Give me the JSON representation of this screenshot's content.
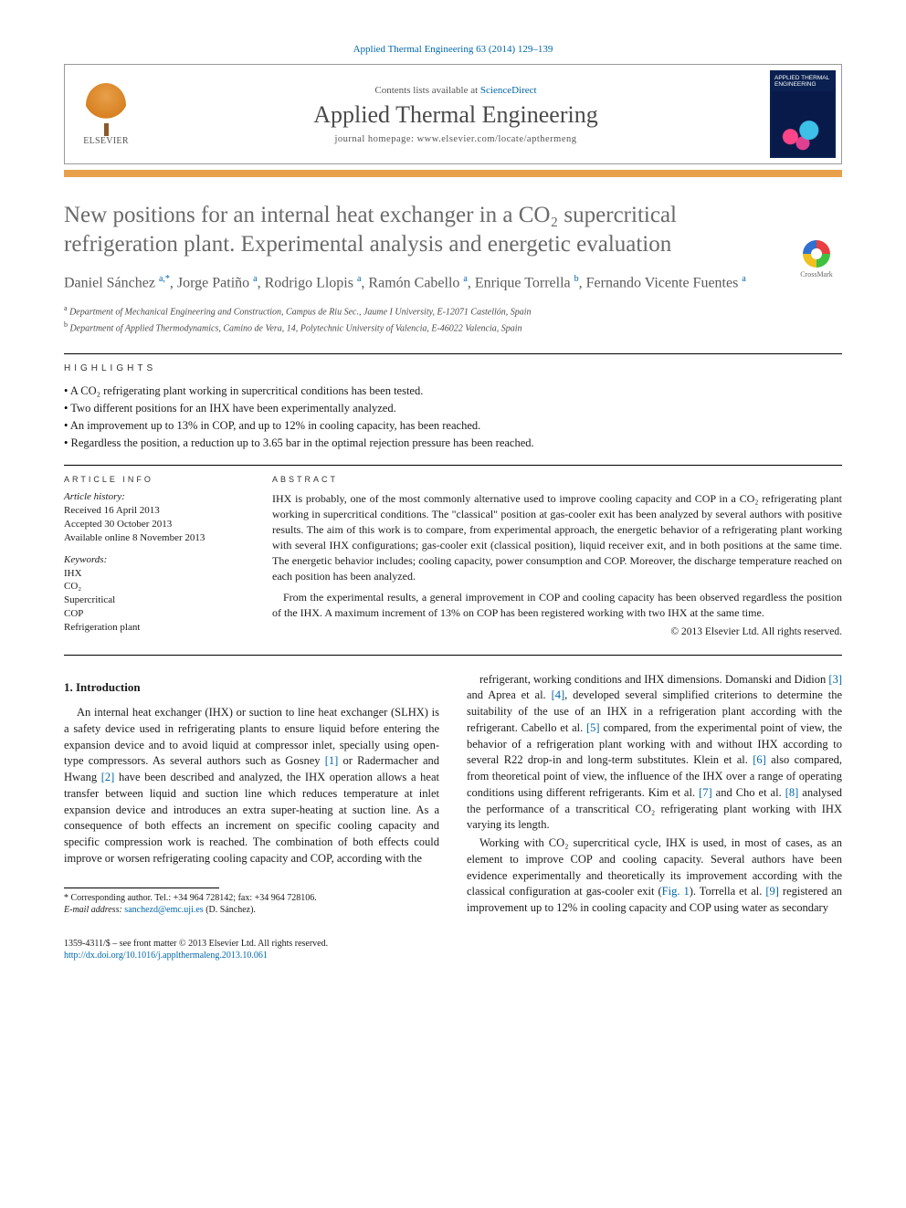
{
  "citation": "Applied Thermal Engineering 63 (2014) 129–139",
  "header": {
    "contents_prefix": "Contents lists available at ",
    "contents_link": "ScienceDirect",
    "journal_title": "Applied Thermal Engineering",
    "homepage_prefix": "journal homepage: ",
    "homepage_url": "www.elsevier.com/locate/apthermeng",
    "publisher": "ELSEVIER",
    "cover_title": "APPLIED THERMAL ENGINEERING"
  },
  "crossmark_label": "CrossMark",
  "article": {
    "title": "New positions for an internal heat exchanger in a CO₂ supercritical refrigeration plant. Experimental analysis and energetic evaluation",
    "authors_html": "Daniel Sánchez <span class='sup'>a,*</span>, Jorge Patiño <span class='sup'>a</span>, Rodrigo Llopis <span class='sup'>a</span>, Ramón Cabello <span class='sup'>a</span>, Enrique Torrella <span class='sup'>b</span>, Fernando Vicente Fuentes <span class='sup'>a</span>",
    "affiliations": [
      {
        "sup": "a",
        "text": "Department of Mechanical Engineering and Construction, Campus de Riu Sec., Jaume I University, E-12071 Castellón, Spain"
      },
      {
        "sup": "b",
        "text": "Department of Applied Thermodynamics, Camino de Vera, 14, Polytechnic University of Valencia, E-46022 Valencia, Spain"
      }
    ]
  },
  "highlights_head": "HIGHLIGHTS",
  "highlights": [
    "A CO₂ refrigerating plant working in supercritical conditions has been tested.",
    "Two different positions for an IHX have been experimentally analyzed.",
    "An improvement up to 13% in COP, and up to 12% in cooling capacity, has been reached.",
    "Regardless the position, a reduction up to 3.65 bar in the optimal rejection pressure has been reached."
  ],
  "article_info": {
    "head": "ARTICLE INFO",
    "history_title": "Article history:",
    "history": "Received 16 April 2013\nAccepted 30 October 2013\nAvailable online 8 November 2013",
    "keywords_title": "Keywords:",
    "keywords": "IHX\nCO₂\nSupercritical\nCOP\nRefrigeration plant"
  },
  "abstract": {
    "head": "ABSTRACT",
    "p1": "IHX is probably, one of the most commonly alternative used to improve cooling capacity and COP in a CO₂ refrigerating plant working in supercritical conditions. The \"classical\" position at gas-cooler exit has been analyzed by several authors with positive results. The aim of this work is to compare, from experimental approach, the energetic behavior of a refrigerating plant working with several IHX configurations; gas-cooler exit (classical position), liquid receiver exit, and in both positions at the same time. The energetic behavior includes; cooling capacity, power consumption and COP. Moreover, the discharge temperature reached on each position has been analyzed.",
    "p2": "From the experimental results, a general improvement in COP and cooling capacity has been observed regardless the position of the IHX. A maximum increment of 13% on COP has been registered working with two IHX at the same time.",
    "copyright": "© 2013 Elsevier Ltd. All rights reserved."
  },
  "intro": {
    "head": "1. Introduction",
    "p1": "An internal heat exchanger (IHX) or suction to line heat exchanger (SLHX) is a safety device used in refrigerating plants to ensure liquid before entering the expansion device and to avoid liquid at compressor inlet, specially using open-type compressors. As several authors such as Gosney [1] or Radermacher and Hwang [2] have been described and analyzed, the IHX operation allows a heat transfer between liquid and suction line which reduces temperature at inlet expansion device and introduces an extra super-heating at suction line. As a consequence of both effects an increment on specific cooling capacity and specific compression work is reached. The combination of both effects could improve or worsen refrigerating cooling capacity and COP, according with the",
    "p2": "refrigerant, working conditions and IHX dimensions. Domanski and Didion [3] and Aprea et al. [4], developed several simplified criterions to determine the suitability of the use of an IHX in a refrigeration plant according with the refrigerant. Cabello et al. [5] compared, from the experimental point of view, the behavior of a refrigeration plant working with and without IHX according to several R22 drop-in and long-term substitutes. Klein et al. [6] also compared, from theoretical point of view, the influence of the IHX over a range of operating conditions using different refrigerants. Kim et al. [7] and Cho et al. [8] analysed the performance of a transcritical CO₂ refrigerating plant working with IHX varying its length.",
    "p3": "Working with CO₂ supercritical cycle, IHX is used, in most of cases, as an element to improve COP and cooling capacity. Several authors have been evidence experimentally and theoretically its improvement according with the classical configuration at gas-cooler exit (Fig. 1). Torrella et al. [9] registered an improvement up to 12% in cooling capacity and COP using water as secondary"
  },
  "refs": {
    "r1": "[1]",
    "r2": "[2]",
    "r3": "[3]",
    "r4": "[4]",
    "r5": "[5]",
    "r6": "[6]",
    "r7": "[7]",
    "r8": "[8]",
    "r9": "[9]",
    "fig1": "Fig. 1"
  },
  "footnote": {
    "corr_label": "* Corresponding author. Tel.: +34 964 728142; fax: +34 964 728106.",
    "email_label": "E-mail address: ",
    "email": "sanchezd@emc.uji.es",
    "email_suffix": " (D. Sánchez)."
  },
  "footer": {
    "issn": "1359-4311/$ – see front matter © 2013 Elsevier Ltd. All rights reserved.",
    "doi": "http://dx.doi.org/10.1016/j.applthermaleng.2013.10.061"
  }
}
